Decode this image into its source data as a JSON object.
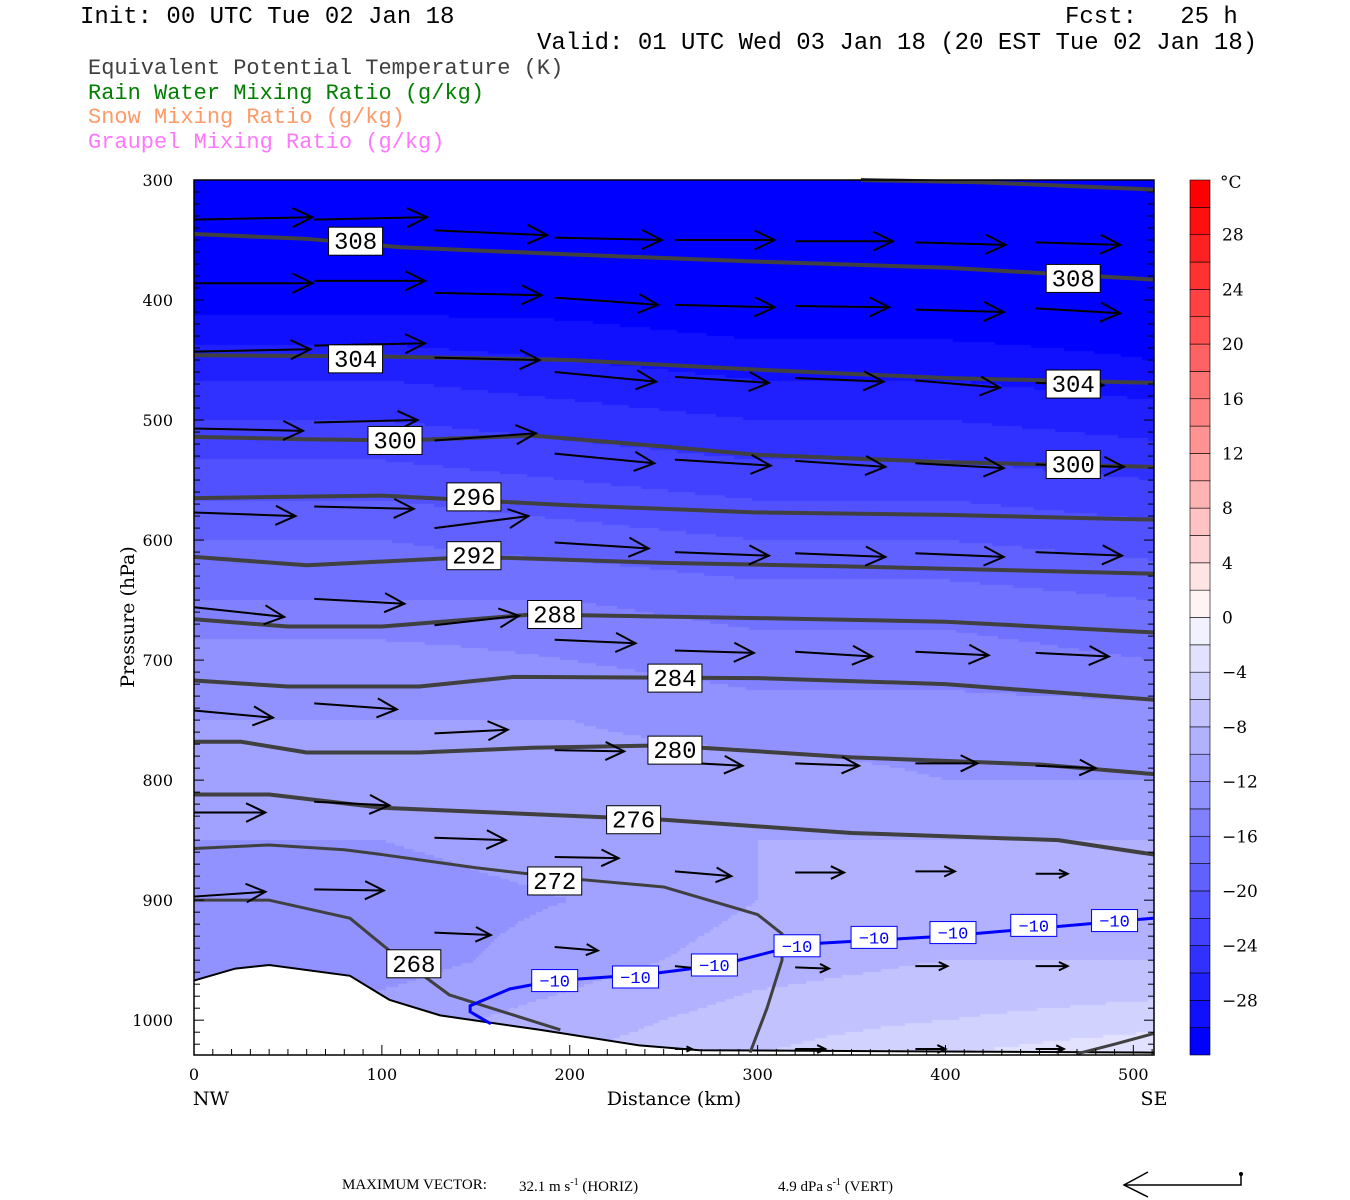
{
  "header": {
    "init": "Init: 00 UTC Tue 02 Jan 18",
    "fcst": "Fcst:   25 h",
    "valid": "Valid: 01 UTC Wed 03 Jan 18 (20 EST Tue 02 Jan 18)"
  },
  "legend": [
    {
      "label": "Equivalent Potential Temperature (K)",
      "color": "#404040"
    },
    {
      "label": "Rain Water Mixing Ratio (g/kg)",
      "color": "#008000"
    },
    {
      "label": "Snow Mixing Ratio (g/kg)",
      "color": "#ff9966"
    },
    {
      "label": "Graupel Mixing Ratio (g/kg)",
      "color": "#ff77ff"
    }
  ],
  "footer": {
    "max_vector_label": "MAXIMUM VECTOR:",
    "horiz_value": "32.1 m s",
    "horiz_unit": "(HORIZ)",
    "vert_value": "4.9 dPa s",
    "vert_unit": "(VERT)",
    "exponent": "-1"
  },
  "chart_data": {
    "type": "heatmap",
    "xlabel": "Distance (km)",
    "ylabel": "Pressure (hPa)",
    "xlim": [
      0,
      511
    ],
    "ylim": [
      300,
      1029
    ],
    "x_ticks": [
      0,
      100,
      200,
      300,
      400,
      500
    ],
    "x_tick_labels": [
      "0",
      "100",
      "200",
      "300",
      "400",
      "500"
    ],
    "y_ticks": [
      300,
      400,
      500,
      600,
      700,
      800,
      900,
      1000
    ],
    "y_tick_labels": [
      "300",
      "400",
      "500",
      "600",
      "700",
      "800",
      "900",
      "1000"
    ],
    "left_endpoint_label": "NW",
    "right_endpoint_label": "SE",
    "colorbar": {
      "unit": "°C",
      "min": -32,
      "max": 32,
      "interval": 2,
      "labels": [
        28,
        24,
        20,
        16,
        12,
        8,
        4,
        0,
        -4,
        -8,
        -12,
        -16,
        -20,
        -24,
        -28
      ],
      "label_text": [
        "28",
        "24",
        "20",
        "16",
        "12",
        "8",
        "4",
        "0",
        "−4",
        "−8",
        "−12",
        "−16",
        "−20",
        "−24",
        "−28"
      ]
    },
    "temperature_grid": {
      "distance_km": [
        0,
        100,
        200,
        300,
        400,
        511
      ],
      "pressure_hpa": [
        300,
        350,
        400,
        450,
        500,
        550,
        600,
        650,
        700,
        750,
        800,
        850,
        900,
        950,
        1000,
        1030
      ],
      "values_c": [
        [
          -34,
          -34,
          -34,
          -34,
          -34,
          -34
        ],
        [
          -33,
          -33,
          -33,
          -33,
          -33,
          -33
        ],
        [
          -31,
          -31,
          -31,
          -32,
          -32,
          -32
        ],
        [
          -27,
          -27,
          -28,
          -29,
          -29,
          -30
        ],
        [
          -24,
          -24,
          -25,
          -26,
          -26,
          -27
        ],
        [
          -21,
          -21,
          -22,
          -23,
          -23,
          -24
        ],
        [
          -18,
          -18,
          -19,
          -20,
          -20,
          -21
        ],
        [
          -16,
          -16,
          -16,
          -17,
          -17,
          -18
        ],
        [
          -13,
          -13,
          -14,
          -15,
          -15,
          -16
        ],
        [
          -12,
          -12,
          -12,
          -13,
          -13,
          -13
        ],
        [
          -11,
          -11,
          -11,
          -11,
          -12,
          -12
        ],
        [
          -12,
          -12,
          -11,
          -10,
          -10,
          -10
        ],
        [
          -13,
          -13,
          -12,
          -10,
          -10,
          -10
        ],
        [
          -13,
          -13,
          -11,
          -9,
          -8,
          -8
        ],
        [
          -12,
          -11,
          -9,
          -7,
          -6,
          -5
        ],
        [
          -11,
          -10,
          -8,
          -6,
          -4,
          -2
        ]
      ]
    },
    "theta_e_contours": [
      {
        "level": 312,
        "points": [
          [
            355,
            300
          ],
          [
            420,
            302
          ],
          [
            511,
            308
          ]
        ]
      },
      {
        "level": 308,
        "points": [
          [
            0,
            345
          ],
          [
            60,
            349
          ],
          [
            110,
            356
          ],
          [
            200,
            362
          ],
          [
            300,
            368
          ],
          [
            400,
            373
          ],
          [
            511,
            383
          ]
        ]
      },
      {
        "level": 304,
        "points": [
          [
            0,
            446
          ],
          [
            100,
            447
          ],
          [
            200,
            450
          ],
          [
            300,
            458
          ],
          [
            400,
            465
          ],
          [
            511,
            469
          ]
        ]
      },
      {
        "level": 300,
        "points": [
          [
            0,
            514
          ],
          [
            60,
            516
          ],
          [
            110,
            517
          ],
          [
            180,
            513
          ],
          [
            250,
            522
          ],
          [
            300,
            529
          ],
          [
            400,
            535
          ],
          [
            511,
            539
          ]
        ]
      },
      {
        "level": 296,
        "points": [
          [
            0,
            565
          ],
          [
            100,
            563
          ],
          [
            200,
            571
          ],
          [
            300,
            577
          ],
          [
            400,
            579
          ],
          [
            511,
            583
          ]
        ]
      },
      {
        "level": 292,
        "points": [
          [
            0,
            614
          ],
          [
            60,
            621
          ],
          [
            150,
            614
          ],
          [
            250,
            619
          ],
          [
            350,
            622
          ],
          [
            511,
            628
          ]
        ]
      },
      {
        "level": 288,
        "points": [
          [
            0,
            666
          ],
          [
            50,
            672
          ],
          [
            100,
            672
          ],
          [
            180,
            662
          ],
          [
            300,
            665
          ],
          [
            400,
            668
          ],
          [
            511,
            677
          ]
        ]
      },
      {
        "level": 284,
        "points": [
          [
            0,
            717
          ],
          [
            50,
            722
          ],
          [
            120,
            722
          ],
          [
            170,
            714
          ],
          [
            300,
            715
          ],
          [
            400,
            720
          ],
          [
            511,
            733
          ]
        ]
      },
      {
        "level": 280,
        "points": [
          [
            0,
            768
          ],
          [
            25,
            768
          ],
          [
            60,
            777
          ],
          [
            120,
            777
          ],
          [
            180,
            773
          ],
          [
            250,
            771
          ],
          [
            350,
            781
          ],
          [
            450,
            787
          ],
          [
            511,
            795
          ]
        ]
      },
      {
        "level": 276,
        "points": [
          [
            0,
            812
          ],
          [
            40,
            812
          ],
          [
            100,
            823
          ],
          [
            250,
            833
          ],
          [
            350,
            844
          ],
          [
            460,
            850
          ],
          [
            511,
            862
          ]
        ]
      },
      {
        "level": 272,
        "points": [
          [
            0,
            857
          ],
          [
            40,
            854
          ],
          [
            80,
            858
          ],
          [
            100,
            862
          ],
          [
            150,
            873
          ],
          [
            200,
            882
          ],
          [
            250,
            889
          ],
          [
            300,
            912
          ],
          [
            313,
            928
          ],
          [
            313,
            950
          ],
          [
            305,
            990
          ],
          [
            296,
            1027
          ]
        ]
      },
      {
        "level": 272,
        "points": [
          [
            470,
            1028
          ],
          [
            490,
            1020
          ],
          [
            511,
            1011
          ]
        ]
      },
      {
        "level": 268,
        "points": [
          [
            0,
            900
          ],
          [
            40,
            900
          ],
          [
            83,
            915
          ],
          [
            104,
            942
          ],
          [
            136,
            979
          ],
          [
            195,
            1008
          ]
        ]
      }
    ],
    "theta_e_labels": [
      {
        "text": "308",
        "at": [
          86,
          351
        ]
      },
      {
        "text": "308",
        "at": [
          468,
          382
        ]
      },
      {
        "text": "304",
        "at": [
          86,
          449
        ]
      },
      {
        "text": "304",
        "at": [
          468,
          470
        ]
      },
      {
        "text": "300",
        "at": [
          107,
          517
        ]
      },
      {
        "text": "300",
        "at": [
          468,
          537
        ]
      },
      {
        "text": "296",
        "at": [
          149,
          564
        ]
      },
      {
        "text": "292",
        "at": [
          149,
          613
        ]
      },
      {
        "text": "288",
        "at": [
          192,
          662
        ]
      },
      {
        "text": "284",
        "at": [
          256,
          715
        ]
      },
      {
        "text": "280",
        "at": [
          256,
          775
        ]
      },
      {
        "text": "276",
        "at": [
          234,
          833
        ]
      },
      {
        "text": "272",
        "at": [
          192,
          884
        ]
      },
      {
        "text": "268",
        "at": [
          117,
          953
        ]
      }
    ],
    "isotherm_minus10": {
      "level": -10,
      "color": "#0000ff",
      "points": [
        [
          158,
          1003
        ],
        [
          147,
          993
        ],
        [
          147,
          988
        ],
        [
          168,
          974
        ],
        [
          192,
          967
        ],
        [
          240,
          962
        ],
        [
          280,
          954
        ],
        [
          310,
          942
        ],
        [
          320,
          937
        ],
        [
          400,
          930
        ],
        [
          511,
          915
        ]
      ],
      "labels": [
        {
          "text": "−10",
          "at": [
            192,
            967
          ]
        },
        {
          "text": "−10",
          "at": [
            235,
            964
          ]
        },
        {
          "text": "−10",
          "at": [
            277,
            954
          ]
        },
        {
          "text": "−10",
          "at": [
            321,
            938
          ]
        },
        {
          "text": "−10",
          "at": [
            362,
            931
          ]
        },
        {
          "text": "−10",
          "at": [
            404,
            927
          ]
        },
        {
          "text": "−10",
          "at": [
            447,
            921
          ]
        },
        {
          "text": "−10",
          "at": [
            490,
            917
          ]
        }
      ]
    },
    "terrain": [
      [
        0,
        967
      ],
      [
        22,
        957
      ],
      [
        40,
        954
      ],
      [
        83,
        963
      ],
      [
        104,
        983
      ],
      [
        131,
        996
      ],
      [
        184,
        1008
      ],
      [
        237,
        1021
      ],
      [
        269,
        1025
      ],
      [
        511,
        1027
      ]
    ],
    "wind_vectors_km_hpa": [
      [
        0,
        333,
        63,
        -2
      ],
      [
        64,
        333,
        60,
        -2
      ],
      [
        128,
        342,
        60,
        4
      ],
      [
        192,
        348,
        57,
        2
      ],
      [
        256,
        350,
        53,
        0
      ],
      [
        320,
        351,
        52,
        0
      ],
      [
        384,
        352,
        48,
        2
      ],
      [
        448,
        352,
        45,
        2
      ],
      [
        0,
        386,
        63,
        0
      ],
      [
        64,
        384,
        59,
        0
      ],
      [
        128,
        394,
        57,
        2
      ],
      [
        192,
        398,
        55,
        6
      ],
      [
        256,
        404,
        53,
        2
      ],
      [
        320,
        405,
        50,
        1
      ],
      [
        384,
        408,
        47,
        2
      ],
      [
        448,
        407,
        45,
        4
      ],
      [
        0,
        443,
        62,
        -2
      ],
      [
        64,
        438,
        59,
        -2
      ],
      [
        128,
        448,
        56,
        2
      ],
      [
        192,
        460,
        54,
        8
      ],
      [
        256,
        464,
        50,
        5
      ],
      [
        320,
        465,
        47,
        3
      ],
      [
        384,
        467,
        45,
        6
      ],
      [
        448,
        469,
        36,
        2
      ],
      [
        0,
        507,
        58,
        2
      ],
      [
        64,
        502,
        55,
        -2
      ],
      [
        128,
        517,
        54,
        -6
      ],
      [
        192,
        528,
        53,
        8
      ],
      [
        256,
        533,
        51,
        5
      ],
      [
        320,
        534,
        48,
        5
      ],
      [
        384,
        536,
        47,
        4
      ],
      [
        448,
        537,
        47,
        2
      ],
      [
        0,
        577,
        54,
        3
      ],
      [
        64,
        572,
        53,
        2
      ],
      [
        128,
        590,
        50,
        -10
      ],
      [
        192,
        602,
        50,
        5
      ],
      [
        256,
        610,
        50,
        3
      ],
      [
        320,
        611,
        48,
        3
      ],
      [
        384,
        611,
        47,
        3
      ],
      [
        448,
        610,
        46,
        3
      ],
      [
        0,
        656,
        48,
        8
      ],
      [
        64,
        649,
        48,
        4
      ],
      [
        128,
        671,
        45,
        -8
      ],
      [
        192,
        683,
        43,
        3
      ],
      [
        256,
        692,
        42,
        2
      ],
      [
        320,
        693,
        41,
        4
      ],
      [
        384,
        693,
        39,
        3
      ],
      [
        448,
        694,
        39,
        3
      ],
      [
        0,
        742,
        42,
        6
      ],
      [
        64,
        736,
        44,
        5
      ],
      [
        128,
        761,
        39,
        -3
      ],
      [
        192,
        775,
        37,
        1
      ],
      [
        256,
        785,
        36,
        3
      ],
      [
        320,
        786,
        34,
        2
      ],
      [
        384,
        786,
        33,
        0
      ],
      [
        448,
        788,
        32,
        2
      ],
      [
        0,
        827,
        38,
        0
      ],
      [
        64,
        818,
        40,
        3
      ],
      [
        128,
        848,
        38,
        2
      ],
      [
        192,
        864,
        34,
        1
      ],
      [
        256,
        876,
        30,
        4
      ],
      [
        320,
        877,
        26,
        0
      ],
      [
        384,
        876,
        21,
        0
      ],
      [
        448,
        878,
        17,
        0
      ],
      [
        0,
        897,
        38,
        -4
      ],
      [
        64,
        891,
        37,
        1
      ],
      [
        128,
        927,
        30,
        2
      ],
      [
        192,
        939,
        23,
        3
      ],
      [
        256,
        955,
        19,
        3
      ],
      [
        320,
        956,
        18,
        1
      ],
      [
        384,
        955,
        17,
        0
      ],
      [
        448,
        955,
        17,
        0
      ],
      [
        256,
        1024,
        9,
        0
      ],
      [
        320,
        1024,
        16,
        0
      ],
      [
        384,
        1024,
        16,
        0
      ],
      [
        448,
        1024,
        15,
        0
      ]
    ]
  }
}
